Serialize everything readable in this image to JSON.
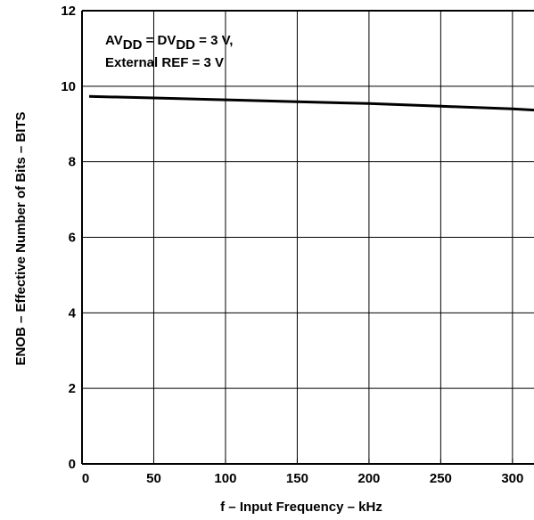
{
  "chart_data": {
    "type": "line",
    "xlabel": "f – Input Frequency – kHz",
    "ylabel": "ENOB – Effective Number of Bits – BITS",
    "xlim": [
      0,
      315
    ],
    "ylim": [
      0,
      12
    ],
    "xticks": [
      0,
      50,
      100,
      150,
      200,
      250,
      300
    ],
    "yticks": [
      0,
      2,
      4,
      6,
      8,
      10,
      12
    ],
    "grid": true,
    "series": [
      {
        "x": [
          5,
          50,
          100,
          150,
          200,
          250,
          300,
          315
        ],
        "y": [
          9.73,
          9.69,
          9.64,
          9.59,
          9.54,
          9.47,
          9.4,
          9.37
        ]
      }
    ],
    "annotation": {
      "line1": {
        "av": "AV",
        "av_sub": "DD",
        "eq": " = DV",
        "dv_sub": "DD",
        "rest": " = 3 V,"
      },
      "line2": "External REF = 3 V"
    }
  }
}
